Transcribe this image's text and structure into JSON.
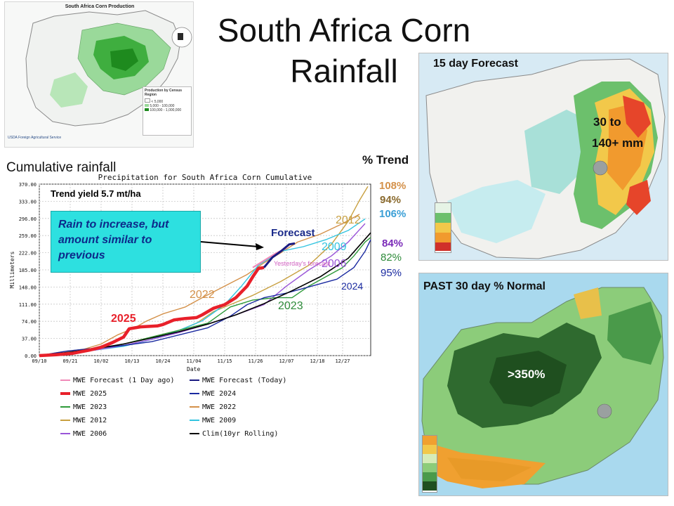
{
  "slide": {
    "title": "South Africa Corn Rainfall",
    "cumulative_label": "Cumulative rainfall",
    "callout": "Rain to increase, but amount similar to previous",
    "trend_header": "% Trend",
    "trend_values": [
      {
        "text": "108%",
        "color": "#d4914a",
        "bold": true
      },
      {
        "text": "94%",
        "color": "#8a6a2e",
        "bold": true
      },
      {
        "text": "106%",
        "color": "#3b9fd6",
        "bold": true
      },
      {
        "text": "84%",
        "color": "#7a2ab8",
        "bold": true
      },
      {
        "text": "82%",
        "color": "#2e8b3a",
        "bold": false
      },
      {
        "text": "95%",
        "color": "#1a2aa0",
        "bold": false
      }
    ]
  },
  "production_map": {
    "title": "South Africa Corn Production",
    "legend_title": "Production by Census Region",
    "legend_items": [
      "< 5,000",
      "5,000 - 100,000",
      "100,000 - 1,000,000"
    ],
    "footer": "USDA Foreign Agricultural Service"
  },
  "forecast_map": {
    "title": "15 day Forecast",
    "note_line1": "30 to",
    "note_line2": "140+ mm"
  },
  "past_map": {
    "title": "PAST 30 day % Normal",
    "note": ">350%"
  },
  "chart_data": {
    "type": "line",
    "title": "Precipitation for South Africa Corn Cumulative",
    "ylabel": "Millimeters",
    "xlabel": "Date",
    "x_ticks": [
      "09/10",
      "09/21",
      "10/02",
      "10/13",
      "10/24",
      "11/04",
      "11/15",
      "11/26",
      "12/07",
      "12/18",
      "12/27"
    ],
    "y_ticks": [
      "0.00",
      "37.00",
      "74.00",
      "111.00",
      "148.00",
      "185.00",
      "222.00",
      "259.00",
      "296.00",
      "333.00",
      "370.00"
    ],
    "ylim": [
      0,
      370
    ],
    "grid": true,
    "annotations": [
      {
        "text": "Trend yield 5.7 mt/ha",
        "color": "#000000"
      },
      {
        "text": "2025",
        "color": "#e8202a"
      },
      {
        "text": "Forecast",
        "color": "#1a2a8a"
      },
      {
        "text": "2012",
        "color": "#c8a040"
      },
      {
        "text": "2009",
        "color": "#33c4e0"
      },
      {
        "text": "2006",
        "color": "#9a55d8"
      },
      {
        "text": "2022",
        "color": "#d4914a"
      },
      {
        "text": "2023",
        "color": "#2e8b3a"
      },
      {
        "text": "2024",
        "color": "#1a2aa0"
      },
      {
        "text": "Yesterday's forecast",
        "color": "#d060c0"
      }
    ],
    "legend": [
      {
        "name": "MWE Forecast (1 Day ago)",
        "color": "#f08ab8"
      },
      {
        "name": "MWE Forecast (Today)",
        "color": "#1a1a80"
      },
      {
        "name": "MWE 2025",
        "color": "#e8202a"
      },
      {
        "name": "MWE 2024",
        "color": "#1a2aa0"
      },
      {
        "name": "MWE 2023",
        "color": "#2e9a3a"
      },
      {
        "name": "MWE 2022",
        "color": "#d4914a"
      },
      {
        "name": "MWE 2012",
        "color": "#c8a040"
      },
      {
        "name": "MWE 2009",
        "color": "#33c4e0"
      },
      {
        "name": "MWE 2006",
        "color": "#9a55d8"
      },
      {
        "name": "Clim(10yr Rolling)",
        "color": "#000000"
      }
    ],
    "series": [
      {
        "key": "2022",
        "color": "#d4914a",
        "width": 1.4,
        "points": [
          [
            0,
            0
          ],
          [
            8,
            8
          ],
          [
            16,
            14
          ],
          [
            22,
            25
          ],
          [
            28,
            45
          ],
          [
            34,
            60
          ],
          [
            38,
            74
          ],
          [
            44,
            90
          ],
          [
            52,
            105
          ],
          [
            58,
            125
          ],
          [
            66,
            150
          ],
          [
            74,
            175
          ],
          [
            80,
            200
          ],
          [
            86,
            222
          ],
          [
            92,
            245
          ],
          [
            100,
            262
          ],
          [
            108,
            285
          ],
          [
            114,
            305
          ]
        ]
      },
      {
        "key": "2012",
        "color": "#c8a040",
        "width": 1.4,
        "points": [
          [
            0,
            0
          ],
          [
            10,
            5
          ],
          [
            20,
            12
          ],
          [
            30,
            25
          ],
          [
            40,
            40
          ],
          [
            50,
            55
          ],
          [
            56,
            70
          ],
          [
            62,
            95
          ],
          [
            68,
            110
          ],
          [
            76,
            130
          ],
          [
            86,
            160
          ],
          [
            96,
            195
          ],
          [
            104,
            240
          ],
          [
            110,
            290
          ],
          [
            114,
            335
          ],
          [
            117,
            365
          ]
        ]
      },
      {
        "key": "2009",
        "color": "#33c4e0",
        "width": 1.4,
        "points": [
          [
            0,
            0
          ],
          [
            10,
            5
          ],
          [
            20,
            12
          ],
          [
            30,
            20
          ],
          [
            40,
            35
          ],
          [
            50,
            55
          ],
          [
            58,
            75
          ],
          [
            66,
            110
          ],
          [
            72,
            150
          ],
          [
            78,
            195
          ],
          [
            86,
            225
          ],
          [
            94,
            235
          ],
          [
            102,
            250
          ],
          [
            110,
            270
          ],
          [
            116,
            295
          ]
        ]
      },
      {
        "key": "2006",
        "color": "#9a55d8",
        "width": 1.4,
        "points": [
          [
            0,
            0
          ],
          [
            10,
            5
          ],
          [
            20,
            12
          ],
          [
            30,
            22
          ],
          [
            40,
            35
          ],
          [
            50,
            50
          ],
          [
            60,
            68
          ],
          [
            70,
            88
          ],
          [
            80,
            110
          ],
          [
            88,
            150
          ],
          [
            96,
            185
          ],
          [
            104,
            215
          ],
          [
            110,
            245
          ],
          [
            116,
            285
          ]
        ]
      },
      {
        "key": "2023",
        "color": "#2e9a3a",
        "width": 1.4,
        "points": [
          [
            0,
            0
          ],
          [
            10,
            5
          ],
          [
            20,
            14
          ],
          [
            30,
            25
          ],
          [
            40,
            40
          ],
          [
            50,
            55
          ],
          [
            60,
            70
          ],
          [
            68,
            105
          ],
          [
            76,
            120
          ],
          [
            84,
            125
          ],
          [
            90,
            125
          ],
          [
            96,
            150
          ],
          [
            102,
            170
          ],
          [
            108,
            190
          ],
          [
            112,
            215
          ],
          [
            116,
            245
          ],
          [
            118,
            255
          ]
        ]
      },
      {
        "key": "2024",
        "color": "#1a2aa0",
        "width": 1.4,
        "points": [
          [
            0,
            0
          ],
          [
            10,
            10
          ],
          [
            20,
            16
          ],
          [
            30,
            22
          ],
          [
            40,
            30
          ],
          [
            50,
            45
          ],
          [
            60,
            60
          ],
          [
            68,
            85
          ],
          [
            74,
            110
          ],
          [
            80,
            125
          ],
          [
            88,
            135
          ],
          [
            94,
            145
          ],
          [
            100,
            155
          ],
          [
            106,
            165
          ],
          [
            112,
            190
          ],
          [
            116,
            225
          ],
          [
            118,
            250
          ]
        ]
      },
      {
        "key": "clim",
        "color": "#000000",
        "width": 1.6,
        "points": [
          [
            0,
            0
          ],
          [
            10,
            7
          ],
          [
            20,
            15
          ],
          [
            30,
            25
          ],
          [
            40,
            38
          ],
          [
            50,
            52
          ],
          [
            60,
            68
          ],
          [
            70,
            88
          ],
          [
            80,
            112
          ],
          [
            90,
            140
          ],
          [
            100,
            170
          ],
          [
            110,
            210
          ],
          [
            118,
            265
          ]
        ]
      },
      {
        "key": "fc_prev",
        "color": "#f08ab8",
        "width": 2.2,
        "points": [
          [
            76,
            190
          ],
          [
            80,
            205
          ],
          [
            84,
            220
          ],
          [
            88,
            232
          ]
        ]
      },
      {
        "key": "2025",
        "color": "#e8202a",
        "width": 4.5,
        "points": [
          [
            0,
            0
          ],
          [
            6,
            2
          ],
          [
            12,
            5
          ],
          [
            18,
            12
          ],
          [
            22,
            18
          ],
          [
            26,
            28
          ],
          [
            30,
            40
          ],
          [
            32,
            58
          ],
          [
            36,
            62
          ],
          [
            42,
            64
          ],
          [
            44,
            67
          ],
          [
            48,
            77
          ],
          [
            52,
            80
          ],
          [
            56,
            82
          ],
          [
            58,
            88
          ],
          [
            62,
            102
          ],
          [
            66,
            110
          ],
          [
            70,
            125
          ],
          [
            74,
            150
          ],
          [
            76,
            170
          ],
          [
            78,
            188
          ],
          [
            80,
            190
          ]
        ]
      },
      {
        "key": "fc_today",
        "color": "#1a1a80",
        "width": 3.0,
        "points": [
          [
            80,
            190
          ],
          [
            83,
            212
          ],
          [
            86,
            225
          ],
          [
            89,
            240
          ],
          [
            91,
            242
          ]
        ]
      }
    ]
  }
}
